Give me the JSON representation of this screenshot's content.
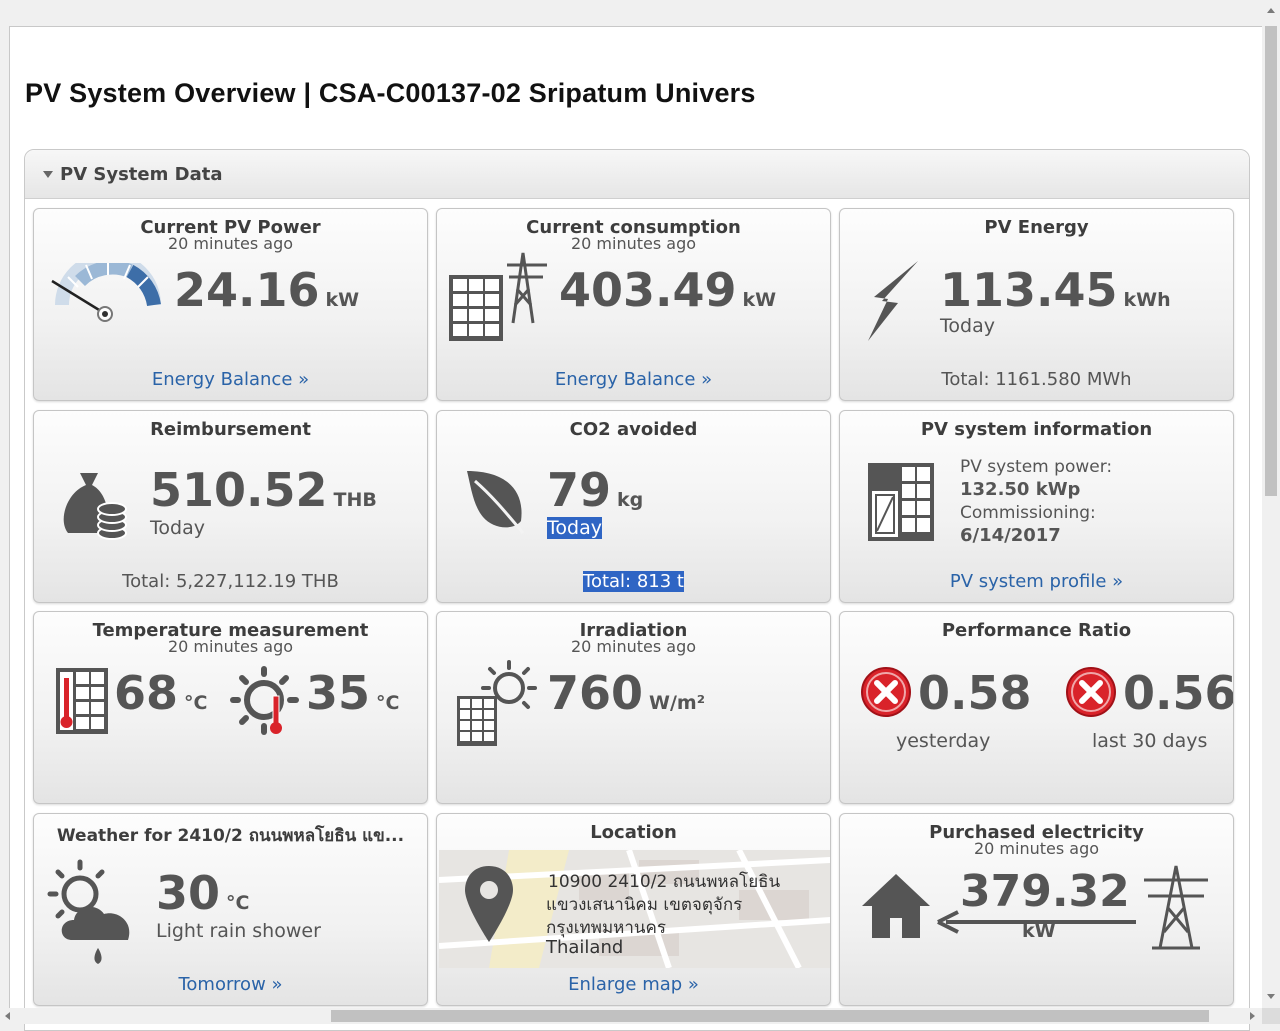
{
  "page": {
    "title": "PV System Overview | CSA-C00137-02 Sripatum Univers"
  },
  "panel": {
    "title": "PV System Data"
  },
  "tiles": {
    "pv_power": {
      "title": "Current PV Power",
      "sub": "20 minutes ago",
      "value": "24.16",
      "unit": "kW",
      "link": "Energy Balance »",
      "gauge_icon": "gauge-icon"
    },
    "consumption": {
      "title": "Current consumption",
      "sub": "20 minutes ago",
      "value": "403.49",
      "unit": "kW",
      "link": "Energy Balance »"
    },
    "energy": {
      "title": "PV Energy",
      "value": "113.45",
      "unit": "kWh",
      "period": "Today",
      "total": "Total: 1161.580 MWh"
    },
    "reimbursement": {
      "title": "Reimbursement",
      "value": "510.52",
      "unit": "THB",
      "period": "Today",
      "total": "Total: 5,227,112.19 THB"
    },
    "co2": {
      "title": "CO2 avoided",
      "value": "79",
      "unit": "kg",
      "period": "Today",
      "total": "Total: 813 t"
    },
    "info": {
      "title": "PV system information",
      "power_label": "PV system power:",
      "power_value": "132.50 kWp",
      "commission_label": "Commissioning:",
      "commission_value": "6/14/2017",
      "link": "PV system profile »"
    },
    "temperature": {
      "title": "Temperature measurement",
      "sub": "20 minutes ago",
      "module_value": "68",
      "ambient_value": "35",
      "unit": "°C"
    },
    "irradiation": {
      "title": "Irradiation",
      "sub": "20 minutes ago",
      "value": "760",
      "unit": "W/m²"
    },
    "performance": {
      "title": "Performance Ratio",
      "yesterday_value": "0.58",
      "yesterday_label": "yesterday",
      "month_value": "0.56",
      "month_label": "last 30 days",
      "status_color": "#d9232a"
    },
    "weather": {
      "title": "Weather for 2410/2 ถนนพหลโยธิน แข...",
      "value": "30",
      "unit": "°C",
      "desc": "Light rain shower",
      "link": "Tomorrow »"
    },
    "location": {
      "title": "Location",
      "addr1": "10900 2410/2 ถนนพหลโยธิน",
      "addr2": "แขวงเสนานิคม เขตจตุจักร",
      "addr3": "กรุงเทพมหานคร",
      "addr4": "Thailand",
      "link": "Enlarge map »"
    },
    "purchased": {
      "title": "Purchased electricity",
      "sub": "20 minutes ago",
      "value": "379.32",
      "unit": "kW"
    }
  },
  "colors": {
    "link": "#2a63a8",
    "selection": "#2f65c4",
    "icon_gray": "#555555",
    "gauge_blue": "#3d6ea8"
  }
}
